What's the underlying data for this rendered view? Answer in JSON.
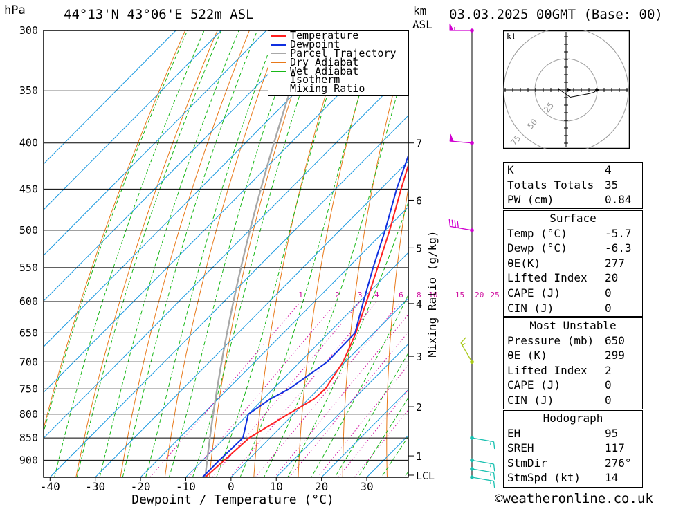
{
  "header": {
    "hpa_label": "hPa",
    "location": "44°13'N  43°06'E  522m  ASL",
    "km_label": "km",
    "asl_label": "ASL",
    "datetime": "03.03.2025  00GMT  (Base: 00)"
  },
  "colors": {
    "temperature": "#ff2020",
    "dewpoint": "#1030e0",
    "parcel": "#a8a8a8",
    "dry_adiabat": "#e87818",
    "wet_adiabat": "#18b818",
    "isotherm": "#1898e0",
    "mixing_ratio": "#d010a0",
    "wind": "#d000d0"
  },
  "chart_data": {
    "type": "line",
    "subtype": "skew-T log-p",
    "xlabel": "Dewpoint / Temperature (°C)",
    "xlim": [
      -40,
      40
    ],
    "x_ticks": [
      -40,
      -30,
      -20,
      -10,
      0,
      10,
      20,
      30
    ],
    "ylabel": "hPa",
    "ylim": [
      940,
      300
    ],
    "y_scale": "log",
    "y_ticks": [
      300,
      350,
      400,
      450,
      500,
      550,
      600,
      650,
      700,
      750,
      800,
      850,
      900
    ],
    "km_axis": {
      "label": "km ASL",
      "ticks": [
        {
          "label": "7",
          "p": 400
        },
        {
          "label": "6",
          "p": 463
        },
        {
          "label": "5",
          "p": 523
        },
        {
          "label": "4",
          "p": 603
        },
        {
          "label": "3",
          "p": 690
        },
        {
          "label": "2",
          "p": 785
        },
        {
          "label": "1",
          "p": 890
        },
        {
          "label": "LCL",
          "p": 935
        }
      ]
    },
    "mixing_ratio_axis": {
      "label": "Mixing Ratio (g/kg)",
      "values": [
        "1",
        "2",
        "3",
        "4",
        "6",
        "8",
        "10",
        "15",
        "20",
        "25"
      ]
    },
    "legend": {
      "position": "top-right",
      "entries": [
        "Temperature",
        "Dewpoint",
        "Parcel Trajectory",
        "Dry Adiabat",
        "Wet Adiabat",
        "Isotherm",
        "Mixing Ratio"
      ]
    },
    "series": [
      {
        "name": "Temperature",
        "points": [
          [
            940,
            -5.7
          ],
          [
            900,
            -5.2
          ],
          [
            850,
            -4.6
          ],
          [
            800,
            -1.2
          ],
          [
            770,
            1.2
          ],
          [
            750,
            1.5
          ],
          [
            700,
            -0.5
          ],
          [
            650,
            -4
          ],
          [
            600,
            -8.5
          ],
          [
            550,
            -13.5
          ],
          [
            500,
            -19
          ],
          [
            450,
            -25.5
          ],
          [
            400,
            -32.5
          ],
          [
            350,
            -41
          ],
          [
            300,
            -50
          ]
        ]
      },
      {
        "name": "Dewpoint",
        "points": [
          [
            940,
            -6.3
          ],
          [
            900,
            -6.3
          ],
          [
            850,
            -6.0
          ],
          [
            800,
            -10
          ],
          [
            770,
            -8.5
          ],
          [
            750,
            -6.5
          ],
          [
            700,
            -4
          ],
          [
            650,
            -4.2
          ],
          [
            600,
            -9.2
          ],
          [
            550,
            -14.5
          ],
          [
            500,
            -20
          ],
          [
            450,
            -26.5
          ],
          [
            400,
            -33
          ],
          [
            350,
            -43
          ],
          [
            300,
            -54
          ]
        ]
      }
    ],
    "winds": [
      {
        "p": 300,
        "dir": 270,
        "speed_kt": 55
      },
      {
        "p": 400,
        "dir": 275,
        "speed_kt": 50
      },
      {
        "p": 500,
        "dir": 280,
        "speed_kt": 40
      },
      {
        "p": 700,
        "dir": 330,
        "speed_kt": 15
      },
      {
        "p": 850,
        "dir": 100,
        "speed_kt": 15
      },
      {
        "p": 900,
        "dir": 100,
        "speed_kt": 15
      },
      {
        "p": 920,
        "dir": 100,
        "speed_kt": 15
      },
      {
        "p": 940,
        "dir": 100,
        "speed_kt": 15
      }
    ]
  },
  "hodograph": {
    "unit_label": "kt",
    "ring_labels": [
      "25",
      "50",
      "75"
    ]
  },
  "indices": {
    "basic": [
      {
        "key": "K",
        "value": "4"
      },
      {
        "key": "Totals Totals",
        "value": "35"
      },
      {
        "key": "PW (cm)",
        "value": "0.84"
      }
    ],
    "surface": {
      "title": "Surface",
      "rows": [
        {
          "key": "Temp (°C)",
          "value": "-5.7"
        },
        {
          "key": "Dewp (°C)",
          "value": "-6.3"
        },
        {
          "key": "θE(K)",
          "value": "277"
        },
        {
          "key": "Lifted Index",
          "value": "20"
        },
        {
          "key": "CAPE (J)",
          "value": "0"
        },
        {
          "key": "CIN (J)",
          "value": "0"
        }
      ]
    },
    "most_unstable": {
      "title": "Most Unstable",
      "rows": [
        {
          "key": "Pressure (mb)",
          "value": "650"
        },
        {
          "key": "θE (K)",
          "value": "299"
        },
        {
          "key": "Lifted Index",
          "value": "2"
        },
        {
          "key": "CAPE (J)",
          "value": "0"
        },
        {
          "key": "CIN (J)",
          "value": "0"
        }
      ]
    },
    "hodograph": {
      "title": "Hodograph",
      "rows": [
        {
          "key": "EH",
          "value": "95"
        },
        {
          "key": "SREH",
          "value": "117"
        },
        {
          "key": "StmDir",
          "value": "276°"
        },
        {
          "key": "StmSpd (kt)",
          "value": "14"
        }
      ]
    }
  },
  "footer": {
    "copyright": "©weatheronline.co.uk"
  }
}
